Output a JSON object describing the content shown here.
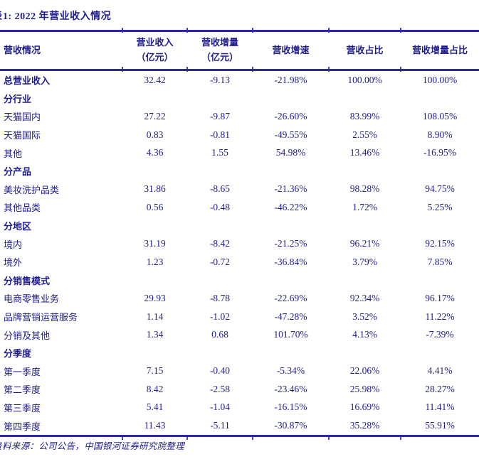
{
  "title": {
    "clipped_prefix": "表",
    "text": "1:  2022 年营业收入情况"
  },
  "table": {
    "columns": [
      {
        "label": "营收情况",
        "sub": ""
      },
      {
        "label": "营业收入",
        "sub": "（亿元）"
      },
      {
        "label": "营收增量",
        "sub": "（亿元）"
      },
      {
        "label": "营收增速",
        "sub": ""
      },
      {
        "label": "营收占比",
        "sub": ""
      },
      {
        "label": "营收增量占比",
        "sub": ""
      }
    ],
    "rows": [
      {
        "label": "总营业收入",
        "bold": true,
        "values": [
          "32.42",
          "-9.13",
          "-21.98%",
          "100.00%",
          "100.00%"
        ]
      },
      {
        "label": "分行业",
        "bold": true,
        "section": true,
        "values": [
          "",
          "",
          "",
          "",
          ""
        ]
      },
      {
        "label": "天猫国内",
        "bold": false,
        "values": [
          "27.22",
          "-9.87",
          "-26.60%",
          "83.99%",
          "108.05%"
        ]
      },
      {
        "label": "天猫国际",
        "bold": false,
        "values": [
          "0.83",
          "-0.81",
          "-49.55%",
          "2.55%",
          "8.90%"
        ]
      },
      {
        "label": "其他",
        "bold": false,
        "values": [
          "4.36",
          "1.55",
          "54.98%",
          "13.46%",
          "-16.95%"
        ]
      },
      {
        "label": "分产品",
        "bold": true,
        "section": true,
        "values": [
          "",
          "",
          "",
          "",
          ""
        ]
      },
      {
        "label": "美妆洗护品类",
        "bold": false,
        "values": [
          "31.86",
          "-8.65",
          "-21.36%",
          "98.28%",
          "94.75%"
        ]
      },
      {
        "label": "其他品类",
        "bold": false,
        "values": [
          "0.56",
          "-0.48",
          "-46.22%",
          "1.72%",
          "5.25%"
        ]
      },
      {
        "label": "分地区",
        "bold": true,
        "section": true,
        "values": [
          "",
          "",
          "",
          "",
          ""
        ]
      },
      {
        "label": "境内",
        "bold": false,
        "values": [
          "31.19",
          "-8.42",
          "-21.25%",
          "96.21%",
          "92.15%"
        ]
      },
      {
        "label": "境外",
        "bold": false,
        "values": [
          "1.23",
          "-0.72",
          "-36.84%",
          "3.79%",
          "7.85%"
        ]
      },
      {
        "label": "分销售模式",
        "bold": true,
        "section": true,
        "values": [
          "",
          "",
          "",
          "",
          ""
        ]
      },
      {
        "label": "电商零售业务",
        "bold": false,
        "values": [
          "29.93",
          "-8.78",
          "-22.69%",
          "92.34%",
          "96.17%"
        ]
      },
      {
        "label": "品牌营销运营服务",
        "bold": false,
        "values": [
          "1.14",
          "-1.02",
          "-47.28%",
          "3.52%",
          "11.22%"
        ]
      },
      {
        "label": "分销及其他",
        "bold": false,
        "values": [
          "1.34",
          "0.68",
          "101.70%",
          "4.13%",
          "-7.39%"
        ]
      },
      {
        "label": "分季度",
        "bold": true,
        "section": true,
        "values": [
          "",
          "",
          "",
          "",
          ""
        ]
      },
      {
        "label": "第一季度",
        "bold": false,
        "values": [
          "7.15",
          "-0.40",
          "-5.34%",
          "22.06%",
          "4.41%"
        ]
      },
      {
        "label": "第二季度",
        "bold": false,
        "values": [
          "8.42",
          "-2.58",
          "-23.46%",
          "25.98%",
          "28.27%"
        ]
      },
      {
        "label": "第三季度",
        "bold": false,
        "values": [
          "5.41",
          "-1.04",
          "-16.15%",
          "16.69%",
          "11.41%"
        ]
      },
      {
        "label": "第四季度",
        "bold": false,
        "values": [
          "11.43",
          "-5.11",
          "-30.87%",
          "35.28%",
          "55.91%"
        ]
      }
    ]
  },
  "footer": {
    "clipped_prefix": "资",
    "text": "料来源：公司公告，中国银河证券研究院整理"
  },
  "colors": {
    "text": "#201c8c",
    "rule": "#2b289c",
    "background": "#ffffff"
  }
}
